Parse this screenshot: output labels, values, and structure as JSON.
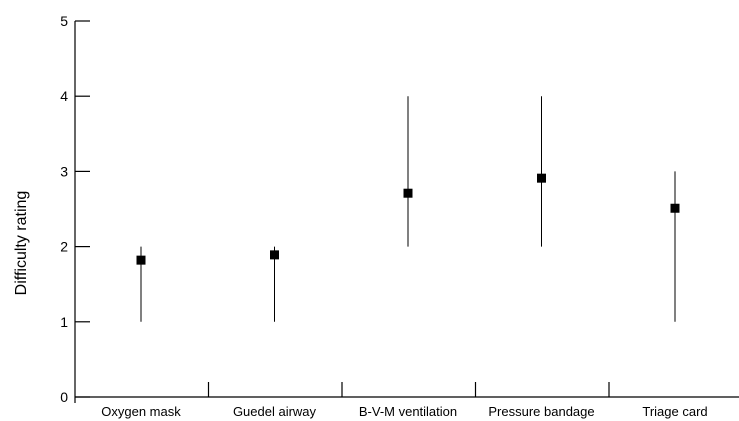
{
  "chart_data": {
    "type": "scatter",
    "title": "",
    "xlabel": "",
    "ylabel": "Difficulty rating",
    "ylim": [
      0,
      5
    ],
    "yticks": [
      "0",
      "1",
      "2",
      "3",
      "4",
      "5"
    ],
    "grid": false,
    "legend": "none",
    "categories": [
      "Oxygen mask",
      "Guedel airway",
      "B-V-M ventilation",
      "Pressure bandage",
      "Triage card"
    ],
    "series": [
      {
        "values": [
          1.82,
          1.89,
          2.71,
          2.91,
          2.51
        ],
        "lower": [
          1,
          1,
          2,
          2,
          1
        ],
        "upper": [
          2,
          2,
          4,
          4,
          3
        ]
      }
    ],
    "marker_color": "#000000"
  }
}
